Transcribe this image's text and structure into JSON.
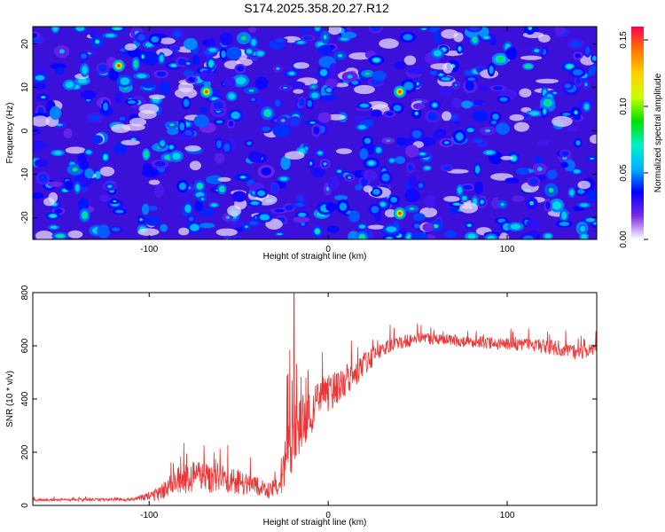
{
  "title": "S174.2025.358.20.27.R12",
  "chart_data": [
    {
      "type": "heatmap",
      "xlabel": "Height of straight line (km)",
      "ylabel": "Frequency (Hz)",
      "xlim": [
        -165,
        150
      ],
      "ylim": [
        -25,
        24
      ],
      "xticks": [
        -100,
        0,
        100
      ],
      "yticks": [
        -20,
        -10,
        0,
        10,
        20
      ],
      "colorbar": {
        "label": "Normalized spectral amplitude",
        "range": [
          0.0,
          0.16
        ],
        "ticks": [
          0.0,
          0.05,
          0.1,
          0.15
        ],
        "tick_labels": [
          "0.00",
          "0.05",
          "0.10",
          "0.15"
        ],
        "colors": [
          "#ffffff",
          "#7a2be2",
          "#0000ff",
          "#00b4ff",
          "#00f0c8",
          "#00e000",
          "#c8ff00",
          "#ffd200",
          "#ff7800",
          "#ff0050"
        ]
      },
      "notable_peaks": [
        {
          "x": -117,
          "y": 15,
          "value": 0.15
        },
        {
          "x": -68,
          "y": 9,
          "value": 0.15
        },
        {
          "x": 40,
          "y": 9,
          "value": 0.15
        },
        {
          "x": 40,
          "y": -19,
          "value": 0.15
        }
      ]
    },
    {
      "type": "line",
      "xlabel": "Height of straight line (km)",
      "ylabel": "SNR (10 * v/v)",
      "xlim": [
        -165,
        150
      ],
      "ylim": [
        0,
        800
      ],
      "xticks": [
        -100,
        0,
        100
      ],
      "yticks": [
        0,
        200,
        400,
        600,
        800
      ],
      "series": [
        {
          "name": "SNR",
          "color": "#ee3333",
          "envelope_x": [
            -165,
            -110,
            -95,
            -85,
            -75,
            -60,
            -45,
            -35,
            -30,
            -26,
            -23,
            -20,
            -15,
            -10,
            -5,
            0,
            10,
            20,
            30,
            50,
            80,
            110,
            130,
            140,
            150
          ],
          "envelope_y": [
            20,
            22,
            40,
            90,
            110,
            100,
            80,
            60,
            60,
            90,
            200,
            260,
            310,
            340,
            400,
            420,
            470,
            530,
            590,
            630,
            615,
            605,
            590,
            570,
            595
          ],
          "noise_amp": [
            5,
            6,
            25,
            50,
            60,
            55,
            45,
            35,
            35,
            45,
            120,
            130,
            100,
            80,
            80,
            70,
            60,
            45,
            30,
            22,
            22,
            25,
            30,
            28,
            22
          ],
          "spike": {
            "x": -19,
            "y": 800
          }
        }
      ]
    }
  ]
}
